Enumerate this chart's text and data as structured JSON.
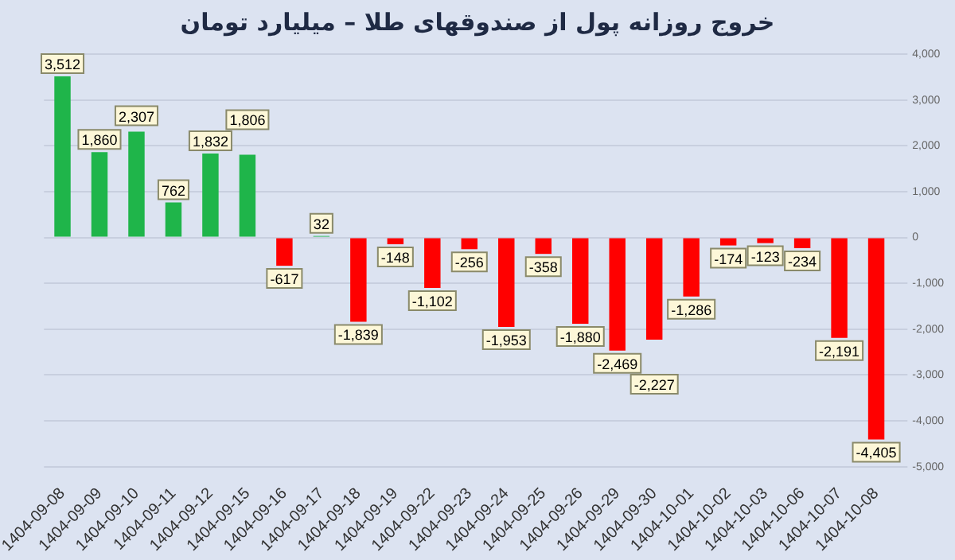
{
  "chart_data": {
    "type": "bar",
    "title": "خروج روزانه پول از صندوقهای طلا – میلیارد تومان",
    "categories": [
      "1404-09-08",
      "1404-09-09",
      "1404-09-10",
      "1404-09-11",
      "1404-09-12",
      "1404-09-15",
      "1404-09-16",
      "1404-09-17",
      "1404-09-18",
      "1404-09-19",
      "1404-09-22",
      "1404-09-23",
      "1404-09-24",
      "1404-09-25",
      "1404-09-26",
      "1404-09-29",
      "1404-09-30",
      "1404-10-01",
      "1404-10-02",
      "1404-10-03",
      "1404-10-06",
      "1404-10-07",
      "1404-10-08"
    ],
    "values": [
      3512,
      1860,
      2307,
      762,
      1832,
      1806,
      -617,
      32,
      -1839,
      -148,
      -1102,
      -256,
      -1953,
      -358,
      -1880,
      -2469,
      -2227,
      -1286,
      -174,
      -123,
      -234,
      -2191,
      -4405
    ],
    "colors": [
      "#1fb54a",
      "#1fb54a",
      "#1fb54a",
      "#1fb54a",
      "#1fb54a",
      "#1fb54a",
      "#ff0000",
      "#1fb54a",
      "#ff0000",
      "#ff0000",
      "#ff0000",
      "#ff0000",
      "#ff0000",
      "#ff0000",
      "#ff0000",
      "#ff0000",
      "#ff0000",
      "#ff0000",
      "#ff0000",
      "#ff0000",
      "#ff0000",
      "#ff0000",
      "#ff0000"
    ],
    "value_labels": [
      "3,512",
      "1,860",
      "2,307",
      "762",
      "1,832",
      "1,806",
      "-617",
      "32",
      "-1,839",
      "-148",
      "-1,102",
      "-256",
      "-1,953",
      "-358",
      "-1,880",
      "-2,469",
      "-2,227",
      "-1,286",
      "-174",
      "-123",
      "-234",
      "-2,191",
      "-4,405"
    ],
    "ylim": [
      -5000,
      4000
    ],
    "yticks": [
      {
        "value": 4000,
        "label": "4,000"
      },
      {
        "value": 3000,
        "label": "3,000"
      },
      {
        "value": 2000,
        "label": "2,000"
      },
      {
        "value": 1000,
        "label": "1,000"
      },
      0,
      {
        "value": -1000,
        "label": "-1,000"
      },
      {
        "value": -2000,
        "label": "-2,000"
      },
      {
        "value": -3000,
        "label": "-3,000"
      },
      {
        "value": -4000,
        "label": "-4,000"
      },
      {
        "value": -5000,
        "label": "-5,000"
      }
    ],
    "grid": "y",
    "legend": false
  }
}
